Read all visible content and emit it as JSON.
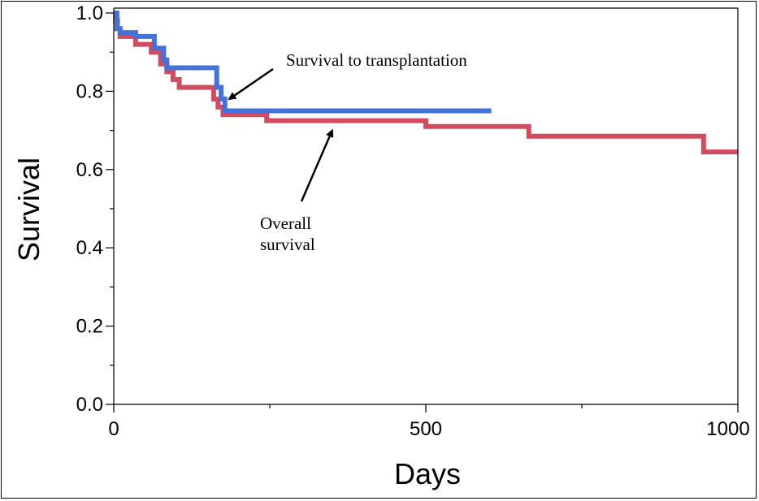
{
  "chart_data": {
    "type": "line",
    "title": "",
    "xlabel": "Days",
    "ylabel": "Survival",
    "xlim": [
      0,
      1000
    ],
    "ylim": [
      0,
      1.0
    ],
    "grid": false,
    "x_ticks": [
      {
        "value": 0,
        "label": "0"
      },
      {
        "value": 500,
        "label": "500"
      },
      {
        "value": 1000,
        "label": "1000"
      }
    ],
    "x_minor_ticks": [
      250,
      750
    ],
    "y_ticks": [
      {
        "value": 0.0,
        "label": "0.0"
      },
      {
        "value": 0.2,
        "label": "0.2"
      },
      {
        "value": 0.4,
        "label": "0.4"
      },
      {
        "value": 0.6,
        "label": "0.6"
      },
      {
        "value": 0.8,
        "label": "0.8"
      },
      {
        "value": 1.0,
        "label": "1.0"
      }
    ],
    "y_minor_ticks": [
      0.1,
      0.3,
      0.5,
      0.7,
      0.9
    ],
    "series": [
      {
        "id": "overall",
        "color": "#d24b5e",
        "step": true,
        "points": [
          [
            0,
            1.0
          ],
          [
            3,
            0.98
          ],
          [
            6,
            0.96
          ],
          [
            10,
            0.94
          ],
          [
            35,
            0.92
          ],
          [
            60,
            0.9
          ],
          [
            75,
            0.87
          ],
          [
            85,
            0.85
          ],
          [
            95,
            0.83
          ],
          [
            105,
            0.81
          ],
          [
            160,
            0.78
          ],
          [
            167,
            0.76
          ],
          [
            175,
            0.74
          ],
          [
            245,
            0.725
          ],
          [
            500,
            0.71
          ],
          [
            665,
            0.685
          ],
          [
            945,
            0.645
          ],
          [
            1000,
            0.645
          ]
        ]
      },
      {
        "id": "transplant",
        "color": "#4472dc",
        "step": true,
        "points": [
          [
            0,
            1.0
          ],
          [
            5,
            0.96
          ],
          [
            10,
            0.95
          ],
          [
            35,
            0.94
          ],
          [
            65,
            0.91
          ],
          [
            80,
            0.88
          ],
          [
            85,
            0.86
          ],
          [
            165,
            0.81
          ],
          [
            172,
            0.78
          ],
          [
            178,
            0.75
          ],
          [
            605,
            0.75
          ]
        ]
      }
    ],
    "annotations": [
      {
        "id": "transplant",
        "text": [
          "Survival to transplantation"
        ],
        "arrow_to": [
          185,
          0.78
        ]
      },
      {
        "id": "overall",
        "text": [
          "Overall",
          "survival"
        ],
        "arrow_to": [
          350,
          0.7
        ]
      }
    ]
  }
}
